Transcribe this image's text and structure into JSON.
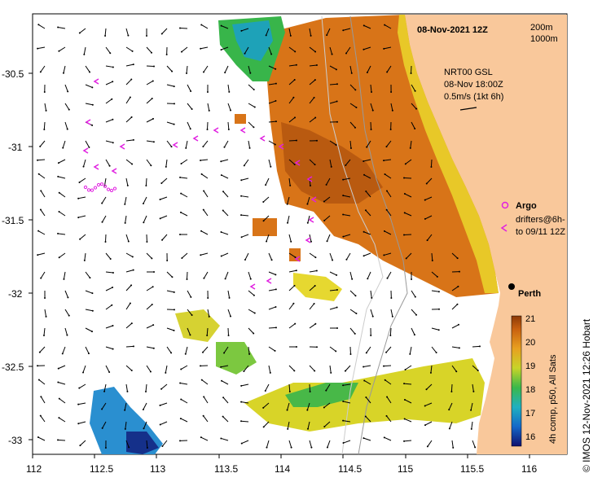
{
  "title": "08-Nov-2021 12Z",
  "isobath_labels": [
    "200m",
    "1000m"
  ],
  "product": {
    "line1": "NRT00 GSL",
    "line2": "08-Nov 18:00Z",
    "line3": "0.5m/s (1kt 6h)"
  },
  "legend": {
    "argo": "Argo",
    "drifters_line1": "drifters@6h-",
    "drifters_line2": "to 09/11 12Z"
  },
  "city": "Perth",
  "colorbar": {
    "label": "4h comp, p50, All Sats",
    "ticks": [
      "21",
      "20",
      "19",
      "18",
      "17",
      "16"
    ]
  },
  "credit": "© IMOS 12-Nov-2021 12:26 Hobart",
  "axes": {
    "x_ticks": [
      "112",
      "112.5",
      "113",
      "113.5",
      "114",
      "114.5",
      "115",
      "115.5",
      "116"
    ],
    "y_ticks": [
      "-30.5",
      "-31",
      "-31.5",
      "-32",
      "-32.5",
      "-33"
    ]
  },
  "colors": {
    "land": "#f9c89b",
    "sst_warm": "#c8600a",
    "sst_mid": "#e6a21e",
    "sst_cool": "#e8d82a",
    "sst_green": "#3fb542",
    "sst_blue": "#1b6fc4",
    "argo": "#e020e0"
  }
}
